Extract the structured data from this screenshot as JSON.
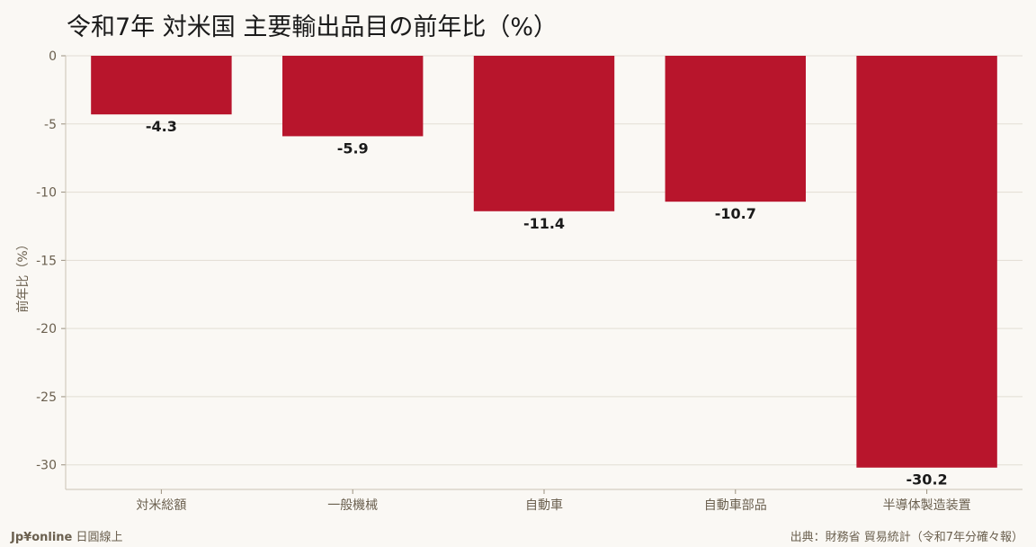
{
  "title": "令和7年 対米国 主要輸出品目の前年比（%）",
  "ylabel": "前年比（%）",
  "footer": {
    "brand": "Jp¥online",
    "brand_sub": "日圓線上",
    "source": "出典：財務省 貿易統計（令和7年分確々報）"
  },
  "colors": {
    "bar": "#b8152c",
    "background": "#faf8f4"
  },
  "chart_data": {
    "type": "bar",
    "title": "令和7年 対米国 主要輸出品目の前年比（%）",
    "ylabel": "前年比（%）",
    "xlabel": "",
    "categories": [
      "対米総額",
      "一般機械",
      "自動車",
      "自動車部品",
      "半導体製造装置"
    ],
    "values": [
      -4.3,
      -5.9,
      -11.4,
      -10.7,
      -30.2
    ],
    "data_labels": [
      "-4.3",
      "-5.9",
      "-11.4",
      "-10.7",
      "-30.2"
    ],
    "ylim": [
      -31.8,
      0
    ],
    "yticks": [
      0,
      -5,
      -10,
      -15,
      -20,
      -25,
      -30
    ],
    "ytick_labels": [
      "0",
      "-5",
      "-10",
      "-15",
      "-20",
      "-25",
      "-30"
    ],
    "grid": true,
    "legend": "none"
  }
}
